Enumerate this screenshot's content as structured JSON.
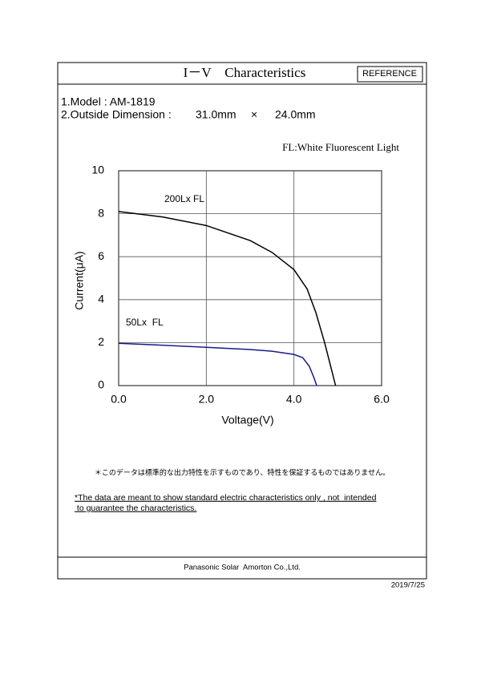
{
  "header": {
    "title": "I－V　Characteristics",
    "badge": "REFERENCE"
  },
  "info": {
    "model": "1.Model : AM-1819",
    "dimension_label": "2.Outside Dimension :",
    "dimension_w": "31.0mm",
    "times": "×",
    "dimension_h": "24.0mm"
  },
  "chart_data": {
    "type": "line",
    "subtitle": "FL:White Fluorescent Light",
    "x_label": "Voltage(V)",
    "y_label": "Current(μA)",
    "xlim": [
      0,
      6
    ],
    "ylim": [
      0,
      10
    ],
    "xticks": [
      {
        "value": 0,
        "label": "0.0"
      },
      {
        "value": 2,
        "label": "2.0"
      },
      {
        "value": 4,
        "label": "4.0"
      },
      {
        "value": 6,
        "label": "6.0"
      }
    ],
    "yticks": [
      0,
      2,
      4,
      6,
      8,
      10
    ],
    "grid": true,
    "series": [
      {
        "name": "200Lx FL",
        "color": "#000000",
        "x": [
          0,
          1,
          2,
          3,
          3.5,
          4,
          4.3,
          4.5,
          4.7,
          4.85,
          4.95
        ],
        "values": [
          8.1,
          7.85,
          7.45,
          6.75,
          6.2,
          5.4,
          4.5,
          3.4,
          2.0,
          0.8,
          0
        ]
      },
      {
        "name": "50Lx  FL",
        "color": "#1a1a8c",
        "x": [
          0,
          1,
          2,
          3,
          3.5,
          4,
          4.2,
          4.35,
          4.45,
          4.52
        ],
        "values": [
          1.97,
          1.88,
          1.78,
          1.68,
          1.6,
          1.45,
          1.3,
          0.9,
          0.4,
          0
        ]
      }
    ]
  },
  "notes": {
    "jp": "＊このデータは標準的な出力特性を示すものであり、特性を保証するものではありません。",
    "en_1": "*The data are meant to show standard electric characteristics only , not  intended",
    "en_2": " to guarantee the characteristics."
  },
  "footer": {
    "company": "Panasonic Solar  Amorton Co.,Ltd.",
    "date": "2019/7/25"
  }
}
